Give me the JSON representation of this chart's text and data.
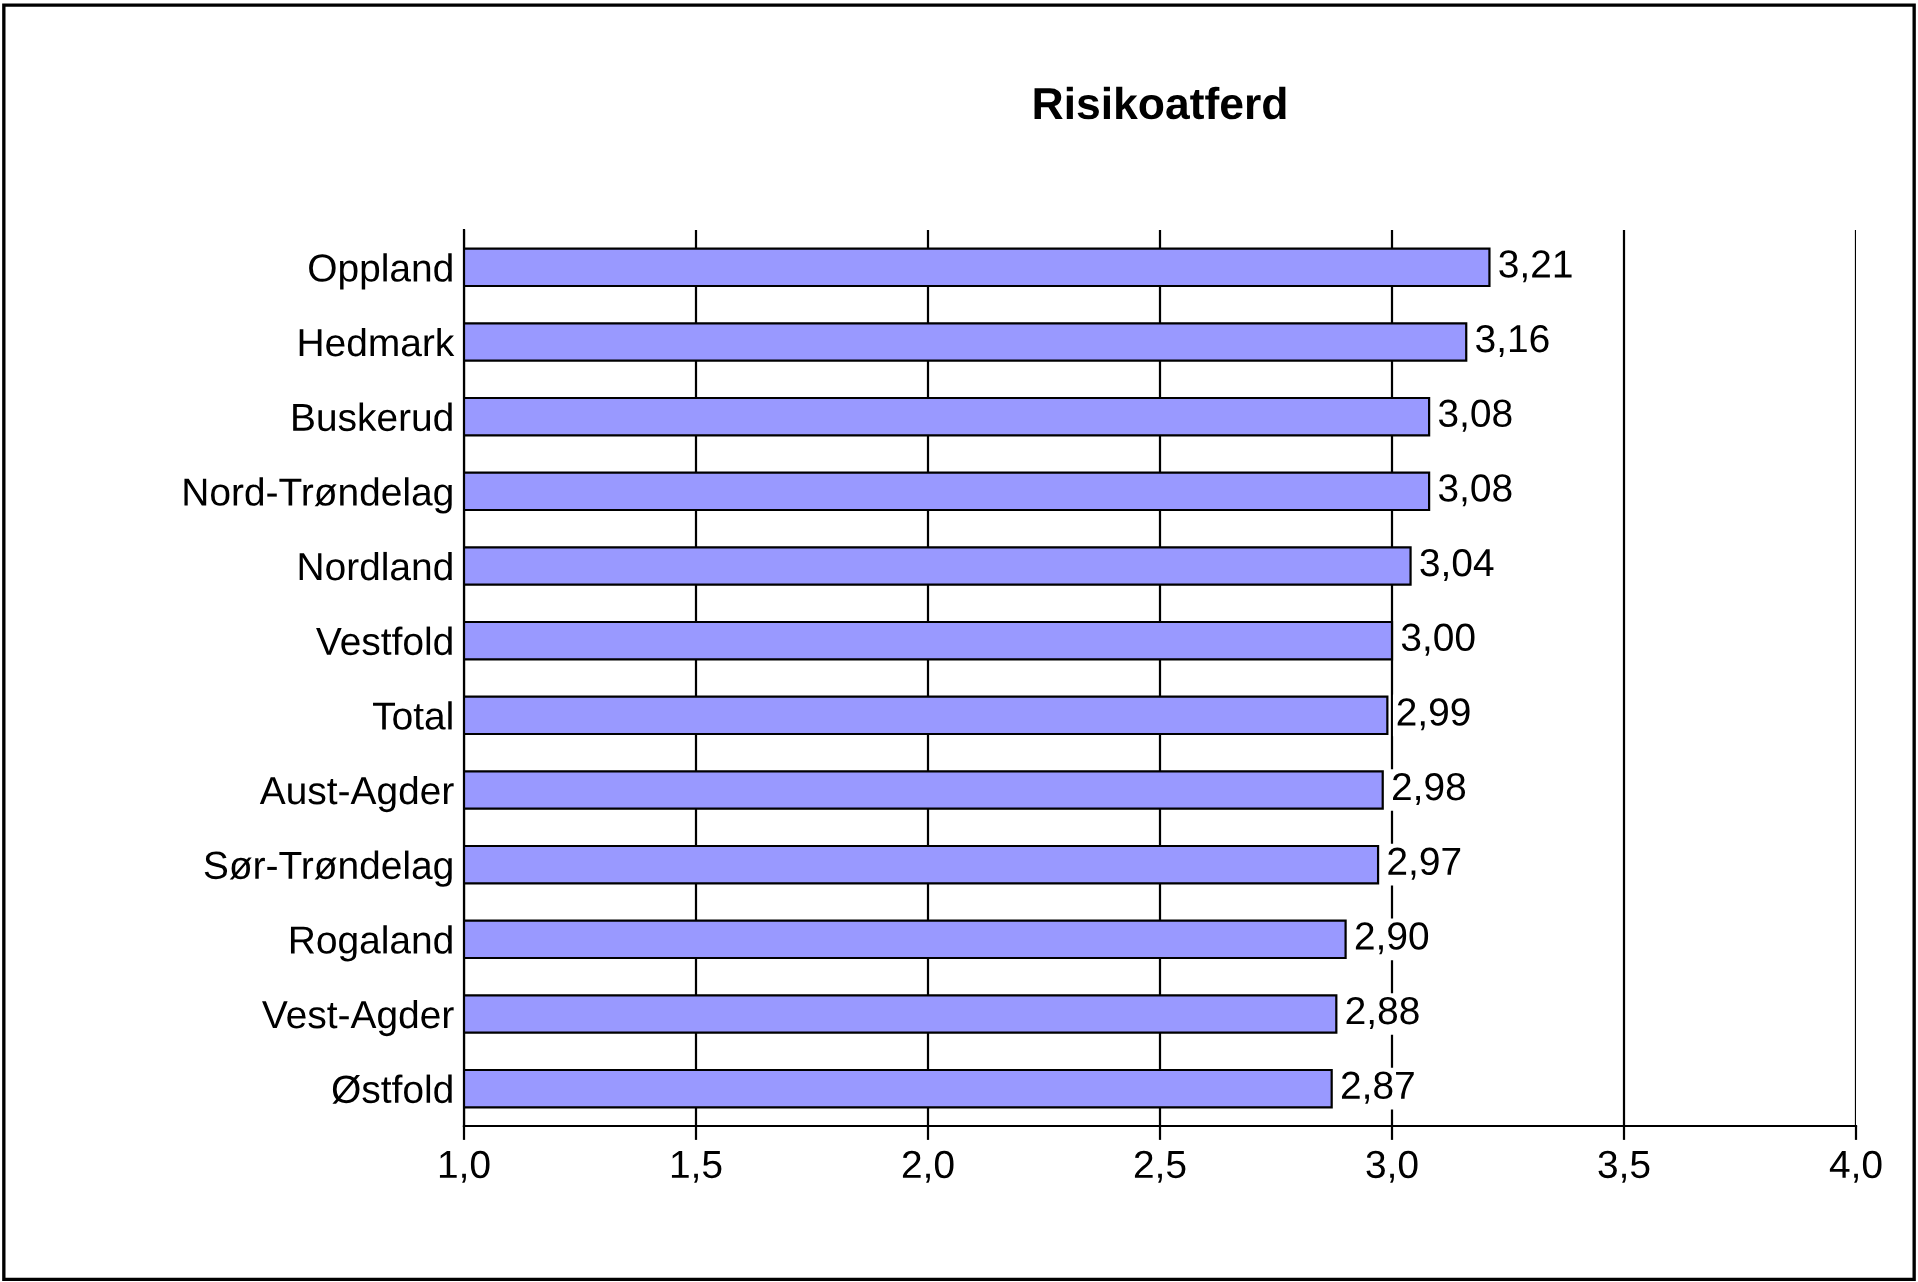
{
  "chart_data": {
    "type": "bar",
    "orientation": "horizontal",
    "title": "Risikoatferd",
    "categories": [
      "Oppland",
      "Hedmark",
      "Buskerud",
      "Nord-Trøndelag",
      "Nordland",
      "Vestfold",
      "Total",
      "Aust-Agder",
      "Sør-Trøndelag",
      "Rogaland",
      "Vest-Agder",
      "Østfold"
    ],
    "values": [
      3.21,
      3.16,
      3.08,
      3.08,
      3.04,
      3.0,
      2.99,
      2.98,
      2.97,
      2.9,
      2.88,
      2.87
    ],
    "value_labels": [
      "3,21",
      "3,16",
      "3,08",
      "3,08",
      "3,04",
      "3,00",
      "2,99",
      "2,98",
      "2,97",
      "2,90",
      "2,88",
      "2,87"
    ],
    "color": "#9999ff",
    "xlim": [
      1.0,
      4.0
    ],
    "xticks": [
      {
        "value": 1.0,
        "label": "1,0"
      },
      {
        "value": 1.5,
        "label": "1,5"
      },
      {
        "value": 2.0,
        "label": "2,0"
      },
      {
        "value": 2.5,
        "label": "2,5"
      },
      {
        "value": 3.0,
        "label": "3,0"
      },
      {
        "value": 3.5,
        "label": "3,5"
      },
      {
        "value": 4.0,
        "label": "4,0"
      }
    ],
    "grid": "x",
    "legend": false
  }
}
